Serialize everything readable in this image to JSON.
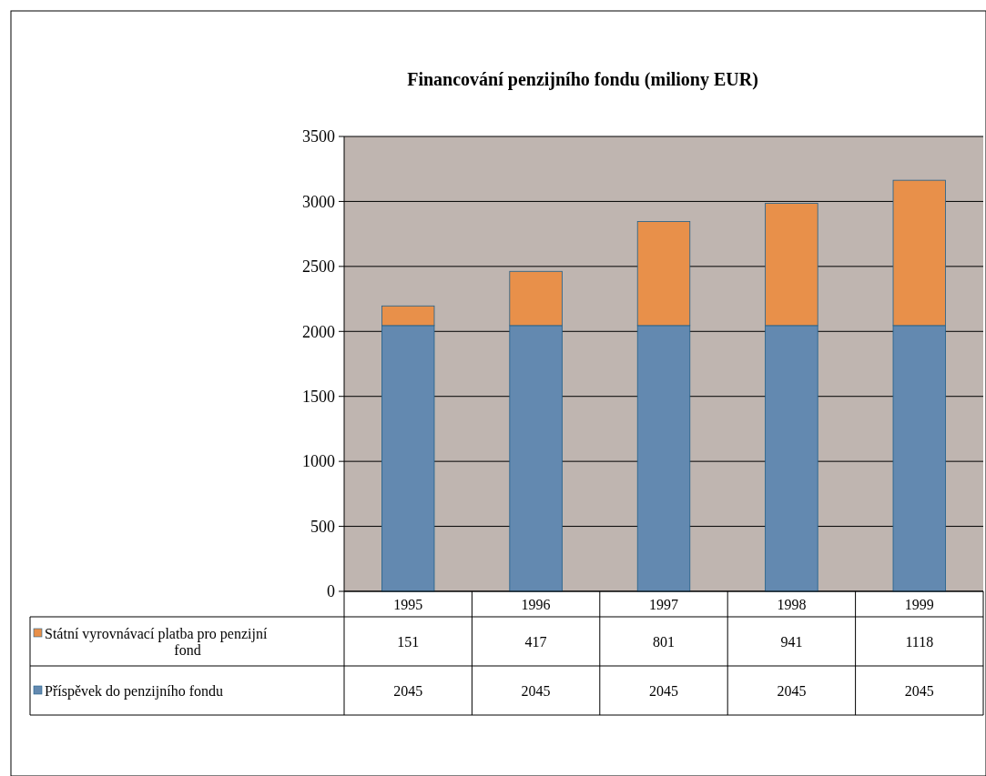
{
  "chart_data": {
    "type": "bar",
    "title": "Financování penzijního fondu (miliony EUR)",
    "categories": [
      "1995",
      "1996",
      "1997",
      "1998",
      "1999"
    ],
    "stacked": true,
    "series": [
      {
        "name": "Příspěvek do penzijního fondu",
        "color": "#6389b0",
        "values": [
          2045,
          2045,
          2045,
          2045,
          2045
        ]
      },
      {
        "name": "Státní vyrovnávací platba pro penzijní fond",
        "color": "#e8904a",
        "values": [
          151,
          417,
          801,
          941,
          1118
        ]
      }
    ],
    "ylim": [
      0,
      3500
    ],
    "yticks": [
      0,
      500,
      1000,
      1500,
      2000,
      2500,
      3000,
      3500
    ],
    "grid": "y",
    "legend": "bottom",
    "data_labels": true
  }
}
